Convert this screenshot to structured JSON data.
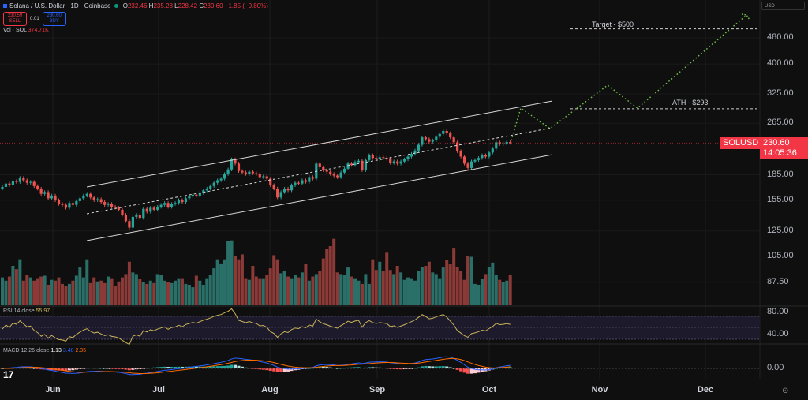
{
  "header": {
    "title": "Solana / U.S. Dollar · 1D · Coinbase",
    "open_label": "O",
    "open": "232.46",
    "high_label": "H",
    "high": "235.28",
    "low_label": "L",
    "low": "228.42",
    "close_label": "C",
    "close": "230.60",
    "change": "−1.85 (−0.80%)",
    "sell_price": "230.59",
    "sell_label": "SELL",
    "spread": "0.01",
    "buy_price": "230.60",
    "buy_label": "BUY",
    "volume_label": "Vol · SOL",
    "volume_value": "374.71K",
    "currency": "USD"
  },
  "price_tag": {
    "symbol": "SOLUSD",
    "price": "230.60",
    "countdown": "14:05:36"
  },
  "annotations": {
    "target": "Target - $500",
    "ath": "ATH - $293"
  },
  "indicators": {
    "rsi": {
      "label": "RSI 14 close",
      "value": "55.97"
    },
    "macd": {
      "label": "MACD 12 26 close",
      "hist": "1.13",
      "macd": "3.48",
      "signal": "2.35"
    }
  },
  "logo": "17",
  "chart_data": {
    "type": "candlestick",
    "scale": "log",
    "start_date": "May 17",
    "end_date": "Oct 8",
    "x_tick_labels": [
      "Jun",
      "Jul",
      "Aug",
      "Sep",
      "Oct",
      "Nov",
      "Dec"
    ],
    "y_tick_labels": [
      "480.00",
      "400.00",
      "325.00",
      "265.00",
      "185.00",
      "155.00",
      "125.00",
      "105.00",
      "87.50"
    ],
    "rsi_tick_labels": [
      "80.00",
      "40.00"
    ],
    "macd_tick_labels": [
      "0.00"
    ],
    "last_candle": {
      "open": 232.46,
      "high": 235.28,
      "low": 228.42,
      "close": 230.6
    },
    "close": [
      170,
      174,
      172,
      177,
      176,
      181,
      178,
      175,
      176,
      171,
      168,
      162,
      164,
      157,
      160,
      155,
      151,
      150,
      147,
      152,
      150,
      154,
      157,
      160,
      162,
      158,
      155,
      156,
      153,
      150,
      151,
      148,
      147,
      145,
      140,
      134,
      128,
      138,
      140,
      137,
      146,
      143,
      147,
      145,
      148,
      150,
      152,
      148,
      151,
      152,
      155,
      153,
      157,
      159,
      161,
      160,
      163,
      166,
      168,
      171,
      175,
      178,
      180,
      186,
      192,
      206,
      200,
      190,
      188,
      186,
      189,
      187,
      186,
      182,
      183,
      180,
      172,
      168,
      158,
      164,
      168,
      166,
      172,
      175,
      174,
      178,
      176,
      182,
      180,
      200,
      195,
      191,
      189,
      186,
      184,
      182,
      188,
      193,
      200,
      198,
      202,
      204,
      191,
      205,
      212,
      208,
      206,
      209,
      208,
      207,
      201,
      203,
      200,
      203,
      206,
      210,
      214,
      219,
      228,
      240,
      237,
      233,
      235,
      241,
      246,
      251,
      247,
      240,
      232,
      218,
      210,
      200,
      194,
      203,
      205,
      208,
      212,
      210,
      216,
      222,
      232,
      229,
      230,
      232.45,
      230.6
    ],
    "volume_k": [
      340,
      300,
      350,
      480,
      440,
      560,
      300,
      370,
      340,
      300,
      330,
      350,
      360,
      250,
      310,
      300,
      340,
      260,
      240,
      260,
      300,
      360,
      460,
      340,
      560,
      270,
      340,
      290,
      300,
      270,
      350,
      330,
      230,
      290,
      340,
      380,
      530,
      400,
      380,
      320,
      280,
      260,
      300,
      270,
      380,
      370,
      300,
      280,
      270,
      300,
      330,
      330,
      260,
      250,
      220,
      360,
      300,
      250,
      330,
      370,
      450,
      560,
      510,
      560,
      780,
      790,
      600,
      560,
      620,
      330,
      310,
      480,
      350,
      330,
      330,
      370,
      450,
      610,
      560,
      390,
      420,
      350,
      330,
      370,
      340,
      400,
      500,
      300,
      350,
      380,
      420,
      570,
      690,
      720,
      810,
      400,
      380,
      370,
      460,
      350,
      330,
      300,
      260,
      380,
      260,
      560,
      430,
      530,
      420,
      640,
      430,
      380,
      480,
      400,
      310,
      340,
      330,
      300,
      420,
      470,
      480,
      530,
      400,
      380,
      330,
      460,
      550,
      500,
      700,
      470,
      420,
      310,
      600,
      590,
      260,
      250,
      320,
      380,
      470,
      520,
      370,
      310,
      280,
      300,
      375
    ],
    "horizontal_levels": [
      {
        "label": "Target - $500",
        "price": 500
      },
      {
        "label": "ATH - $293",
        "price": 293
      }
    ],
    "colors": {
      "up": "#26a69a",
      "down": "#ef5350",
      "volume_up": "#2b6f69",
      "volume_down": "#8c3a37",
      "projection": "#6fbf4a",
      "rsi": "#c9b458",
      "macd": "#2962ff",
      "signal": "#ff6d00",
      "price_tag": "#f23645"
    }
  }
}
